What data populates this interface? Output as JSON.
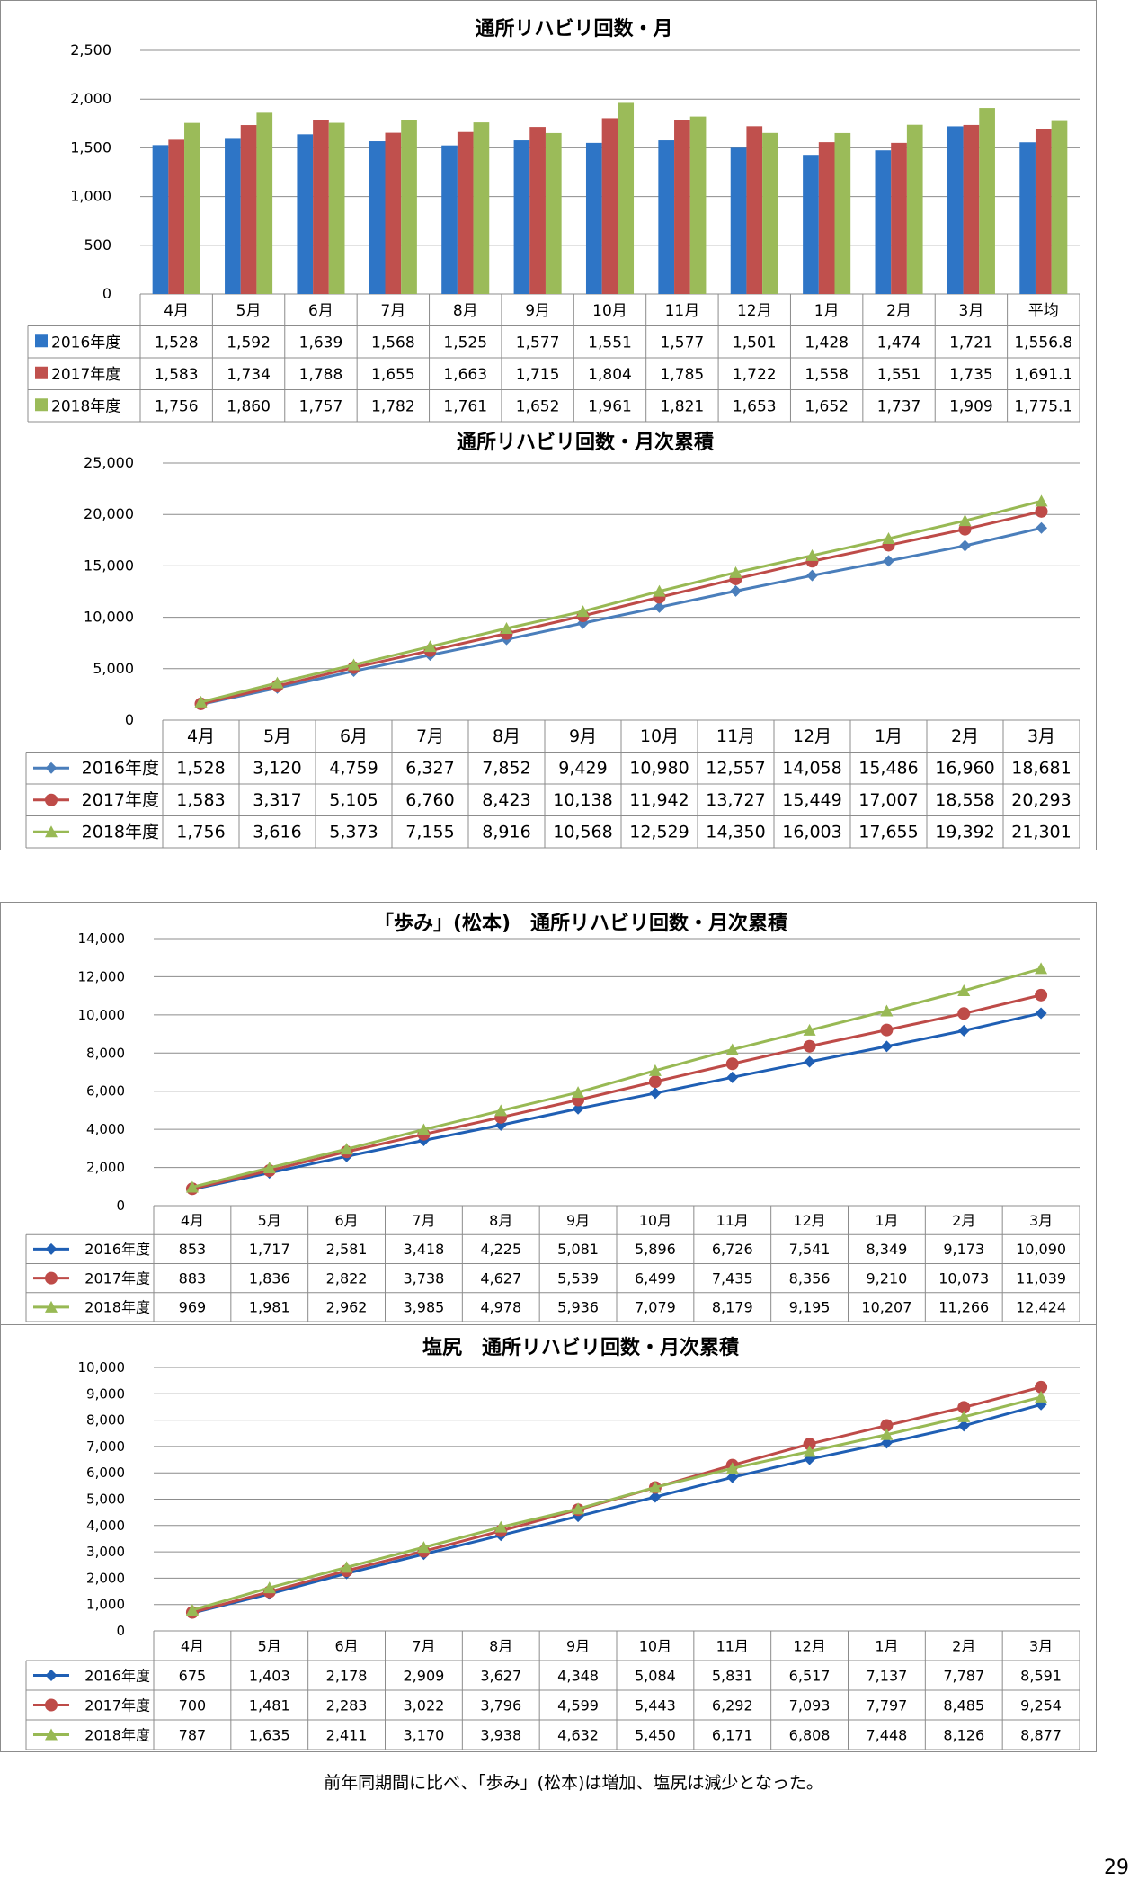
{
  "chart_data": [
    {
      "type": "bar",
      "title": "通所リハビリ回数・月",
      "ylim": [
        0,
        2500
      ],
      "yticks": [
        0,
        500,
        1000,
        1500,
        2000,
        2500
      ],
      "ytick_labels": [
        "0",
        "500",
        "1,000",
        "1,500",
        "2,000",
        "2,500"
      ],
      "grid": true,
      "legend": "table",
      "categories": [
        "4月",
        "5月",
        "6月",
        "7月",
        "8月",
        "9月",
        "10月",
        "11月",
        "12月",
        "1月",
        "2月",
        "3月",
        "平均"
      ],
      "series": [
        {
          "name": "2016年度",
          "color": "#2e75c6",
          "values": [
            1528,
            1592,
            1639,
            1568,
            1525,
            1577,
            1551,
            1577,
            1501,
            1428,
            1474,
            1721,
            1556.8
          ],
          "labels": [
            "1,528",
            "1,592",
            "1,639",
            "1,568",
            "1,525",
            "1,577",
            "1,551",
            "1,577",
            "1,501",
            "1,428",
            "1,474",
            "1,721",
            "1,556.8"
          ]
        },
        {
          "name": "2017年度",
          "color": "#c0504d",
          "values": [
            1583,
            1734,
            1788,
            1655,
            1663,
            1715,
            1804,
            1785,
            1722,
            1558,
            1551,
            1735,
            1691.1
          ],
          "labels": [
            "1,583",
            "1,734",
            "1,788",
            "1,655",
            "1,663",
            "1,715",
            "1,804",
            "1,785",
            "1,722",
            "1,558",
            "1,551",
            "1,735",
            "1,691.1"
          ]
        },
        {
          "name": "2018年度",
          "color": "#9bbb59",
          "values": [
            1756,
            1860,
            1757,
            1782,
            1761,
            1652,
            1961,
            1821,
            1653,
            1652,
            1737,
            1909,
            1775.1
          ],
          "labels": [
            "1,756",
            "1,860",
            "1,757",
            "1,782",
            "1,761",
            "1,652",
            "1,961",
            "1,821",
            "1,653",
            "1,652",
            "1,737",
            "1,909",
            "1,775.1"
          ]
        }
      ]
    },
    {
      "type": "line",
      "title": "通所リハビリ回数・月次累積",
      "ylim": [
        0,
        25000
      ],
      "yticks": [
        0,
        5000,
        10000,
        15000,
        20000,
        25000
      ],
      "ytick_labels": [
        "0",
        "5,000",
        "10,000",
        "15,000",
        "20,000",
        "25,000"
      ],
      "grid": true,
      "legend": "table",
      "categories": [
        "4月",
        "5月",
        "6月",
        "7月",
        "8月",
        "9月",
        "10月",
        "11月",
        "12月",
        "1月",
        "2月",
        "3月"
      ],
      "series": [
        {
          "name": "2016年度",
          "color": "#4a7ebb",
          "marker": "diamond",
          "values": [
            1528,
            3120,
            4759,
            6327,
            7852,
            9429,
            10980,
            12557,
            14058,
            15486,
            16960,
            18681
          ],
          "labels": [
            "1,528",
            "3,120",
            "4,759",
            "6,327",
            "7,852",
            "9,429",
            "10,980",
            "12,557",
            "14,058",
            "15,486",
            "16,960",
            "18,681"
          ]
        },
        {
          "name": "2017年度",
          "color": "#be4b48",
          "marker": "circle",
          "values": [
            1583,
            3317,
            5105,
            6760,
            8423,
            10138,
            11942,
            13727,
            15449,
            17007,
            18558,
            20293
          ],
          "labels": [
            "1,583",
            "3,317",
            "5,105",
            "6,760",
            "8,423",
            "10,138",
            "11,942",
            "13,727",
            "15,449",
            "17,007",
            "18,558",
            "20,293"
          ]
        },
        {
          "name": "2018年度",
          "color": "#98b954",
          "marker": "triangle",
          "values": [
            1756,
            3616,
            5373,
            7155,
            8916,
            10568,
            12529,
            14350,
            16003,
            17655,
            19392,
            21301
          ],
          "labels": [
            "1,756",
            "3,616",
            "5,373",
            "7,155",
            "8,916",
            "10,568",
            "12,529",
            "14,350",
            "16,003",
            "17,655",
            "19,392",
            "21,301"
          ]
        }
      ]
    },
    {
      "type": "line",
      "title": "「歩み」(松本)　通所リハビリ回数・月次累積",
      "ylim": [
        0,
        14000
      ],
      "yticks": [
        0,
        2000,
        4000,
        6000,
        8000,
        10000,
        12000,
        14000
      ],
      "ytick_labels": [
        "0",
        "2,000",
        "4,000",
        "6,000",
        "8,000",
        "10,000",
        "12,000",
        "14,000"
      ],
      "grid": true,
      "legend": "table",
      "categories": [
        "4月",
        "5月",
        "6月",
        "7月",
        "8月",
        "9月",
        "10月",
        "11月",
        "12月",
        "1月",
        "2月",
        "3月"
      ],
      "series": [
        {
          "name": "2016年度",
          "color": "#1f5fb4",
          "marker": "diamond",
          "values": [
            853,
            1717,
            2581,
            3418,
            4225,
            5081,
            5896,
            6726,
            7541,
            8349,
            9173,
            10090
          ],
          "labels": [
            "853",
            "1,717",
            "2,581",
            "3,418",
            "4,225",
            "5,081",
            "5,896",
            "6,726",
            "7,541",
            "8,349",
            "9,173",
            "10,090"
          ]
        },
        {
          "name": "2017年度",
          "color": "#be4b48",
          "marker": "circle",
          "values": [
            883,
            1836,
            2822,
            3738,
            4627,
            5539,
            6499,
            7435,
            8356,
            9210,
            10073,
            11039
          ],
          "labels": [
            "883",
            "1,836",
            "2,822",
            "3,738",
            "4,627",
            "5,539",
            "6,499",
            "7,435",
            "8,356",
            "9,210",
            "10,073",
            "11,039"
          ]
        },
        {
          "name": "2018年度",
          "color": "#98b954",
          "marker": "triangle",
          "values": [
            969,
            1981,
            2962,
            3985,
            4978,
            5936,
            7079,
            8179,
            9195,
            10207,
            11266,
            12424
          ],
          "labels": [
            "969",
            "1,981",
            "2,962",
            "3,985",
            "4,978",
            "5,936",
            "7,079",
            "8,179",
            "9,195",
            "10,207",
            "11,266",
            "12,424"
          ]
        }
      ]
    },
    {
      "type": "line",
      "title": "塩尻　通所リハビリ回数・月次累積",
      "ylim": [
        0,
        10000
      ],
      "yticks": [
        0,
        1000,
        2000,
        3000,
        4000,
        5000,
        6000,
        7000,
        8000,
        9000,
        10000
      ],
      "ytick_labels": [
        "0",
        "1,000",
        "2,000",
        "3,000",
        "4,000",
        "5,000",
        "6,000",
        "7,000",
        "8,000",
        "9,000",
        "10,000"
      ],
      "grid": true,
      "legend": "table",
      "categories": [
        "4月",
        "5月",
        "6月",
        "7月",
        "8月",
        "9月",
        "10月",
        "11月",
        "12月",
        "1月",
        "2月",
        "3月"
      ],
      "series": [
        {
          "name": "2016年度",
          "color": "#1f5fb4",
          "marker": "diamond",
          "values": [
            675,
            1403,
            2178,
            2909,
            3627,
            4348,
            5084,
            5831,
            6517,
            7137,
            7787,
            8591
          ],
          "labels": [
            "675",
            "1,403",
            "2,178",
            "2,909",
            "3,627",
            "4,348",
            "5,084",
            "5,831",
            "6,517",
            "7,137",
            "7,787",
            "8,591"
          ]
        },
        {
          "name": "2017年度",
          "color": "#be4b48",
          "marker": "circle",
          "values": [
            700,
            1481,
            2283,
            3022,
            3796,
            4599,
            5443,
            6292,
            7093,
            7797,
            8485,
            9254
          ],
          "labels": [
            "700",
            "1,481",
            "2,283",
            "3,022",
            "3,796",
            "4,599",
            "5,443",
            "6,292",
            "7,093",
            "7,797",
            "8,485",
            "9,254"
          ]
        },
        {
          "name": "2018年度",
          "color": "#98b954",
          "marker": "triangle",
          "values": [
            787,
            1635,
            2411,
            3170,
            3938,
            4632,
            5450,
            6171,
            6808,
            7448,
            8126,
            8877
          ],
          "labels": [
            "787",
            "1,635",
            "2,411",
            "3,170",
            "3,938",
            "4,632",
            "5,450",
            "6,171",
            "6,808",
            "7,448",
            "8,126",
            "8,877"
          ]
        }
      ]
    }
  ],
  "footnote": "前年同期間に比べ、「歩み」(松本)は増加、塩尻は減少となった。",
  "page_number": "29"
}
